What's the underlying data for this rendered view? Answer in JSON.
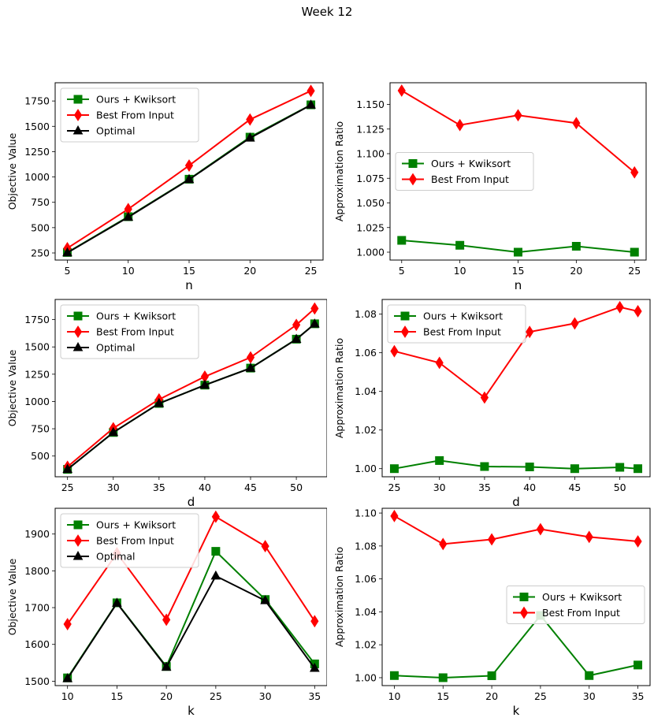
{
  "figure": {
    "title": "Week 12"
  },
  "colors": {
    "ours": "#008000",
    "best": "#ff0000",
    "optimal": "#000000"
  },
  "chart_data": [
    {
      "type": "line",
      "xlabel": "n",
      "ylabel": "Objective Value",
      "x": [
        5,
        10,
        15,
        20,
        25
      ],
      "xticks": [
        5,
        10,
        15,
        20,
        25
      ],
      "xlim": [
        4,
        26
      ],
      "ylim": [
        180,
        1930
      ],
      "yticks": [
        250,
        500,
        750,
        1000,
        1250,
        1500,
        1750
      ],
      "legend": "top-left",
      "series": [
        {
          "name": "Ours + Kwiksort",
          "marker": "square",
          "color": "#008000",
          "values": [
            255,
            608,
            978,
            1393,
            1712
          ]
        },
        {
          "name": "Best From Input",
          "marker": "diamond",
          "color": "#ff0000",
          "values": [
            297,
            683,
            1113,
            1567,
            1850
          ]
        },
        {
          "name": "Optimal",
          "marker": "triangle",
          "color": "#000000",
          "values": [
            252,
            603,
            975,
            1385,
            1710
          ]
        }
      ]
    },
    {
      "type": "line",
      "xlabel": "n",
      "ylabel": "Approximation Ratio",
      "x": [
        5,
        10,
        15,
        20,
        25
      ],
      "xticks": [
        5,
        10,
        15,
        20,
        25
      ],
      "xlim": [
        4,
        26
      ],
      "ylim": [
        0.992,
        1.172
      ],
      "yticks": [
        1.0,
        1.025,
        1.05,
        1.075,
        1.1,
        1.125,
        1.15
      ],
      "ydecimals": 3,
      "legend": "center-left",
      "series": [
        {
          "name": "Ours + Kwiksort",
          "marker": "square",
          "color": "#008000",
          "values": [
            1.012,
            1.007,
            1.0,
            1.006,
            1.0
          ]
        },
        {
          "name": "Best From Input",
          "marker": "diamond",
          "color": "#ff0000",
          "values": [
            1.164,
            1.129,
            1.139,
            1.131,
            1.081
          ]
        }
      ]
    },
    {
      "type": "line",
      "xlabel": "d",
      "ylabel": "Objective Value",
      "x": [
        25,
        30,
        35,
        40,
        45,
        50,
        52
      ],
      "xticks": [
        25,
        30,
        35,
        40,
        45,
        50
      ],
      "xlim": [
        23.65,
        53.35
      ],
      "ylim": [
        310,
        1935
      ],
      "yticks": [
        500,
        750,
        1000,
        1250,
        1500,
        1750
      ],
      "legend": "top-left",
      "series": [
        {
          "name": "Ours + Kwiksort",
          "marker": "square",
          "color": "#008000",
          "values": [
            378,
            716,
            982,
            1150,
            1306,
            1571,
            1712
          ]
        },
        {
          "name": "Best From Input",
          "marker": "diamond",
          "color": "#ff0000",
          "values": [
            402,
            755,
            1019,
            1228,
            1404,
            1702,
            1852
          ]
        },
        {
          "name": "Optimal",
          "marker": "triangle",
          "color": "#000000",
          "values": [
            378,
            716,
            982,
            1150,
            1305,
            1570,
            1710
          ]
        }
      ]
    },
    {
      "type": "line",
      "xlabel": "d",
      "ylabel": "Approximation Ratio",
      "x": [
        25,
        30,
        35,
        40,
        45,
        50,
        52
      ],
      "xticks": [
        25,
        30,
        35,
        40,
        45,
        50
      ],
      "xlim": [
        23.65,
        53.35
      ],
      "ylim": [
        0.9958,
        1.0876
      ],
      "yticks": [
        1.0,
        1.02,
        1.04,
        1.06,
        1.08
      ],
      "ydecimals": 2,
      "legend": "top-left",
      "series": [
        {
          "name": "Ours + Kwiksort",
          "marker": "square",
          "color": "#008000",
          "values": [
            1.0,
            1.0042,
            1.0011,
            1.0009,
            1.0,
            1.0007,
            1.0
          ]
        },
        {
          "name": "Best From Input",
          "marker": "diamond",
          "color": "#ff0000",
          "values": [
            1.0608,
            1.0548,
            1.0368,
            1.0708,
            1.0752,
            1.0836,
            1.0815
          ]
        }
      ]
    },
    {
      "type": "line",
      "xlabel": "k",
      "ylabel": "Objective Value",
      "x": [
        10,
        15,
        20,
        25,
        30,
        35
      ],
      "xticks": [
        10,
        15,
        20,
        25,
        30,
        35
      ],
      "xlim": [
        8.75,
        36.25
      ],
      "ylim": [
        1488,
        1970
      ],
      "yticks": [
        1500,
        1600,
        1700,
        1800,
        1900
      ],
      "legend": "top-left",
      "series": [
        {
          "name": "Ours + Kwiksort",
          "marker": "square",
          "color": "#008000",
          "values": [
            1509,
            1713,
            1540,
            1853,
            1722,
            1547
          ]
        },
        {
          "name": "Best From Input",
          "marker": "diamond",
          "color": "#ff0000",
          "values": [
            1655,
            1848,
            1667,
            1947,
            1867,
            1663
          ]
        },
        {
          "name": "Optimal",
          "marker": "triangle",
          "color": "#000000",
          "values": [
            1507,
            1712,
            1538,
            1786,
            1719,
            1535
          ]
        }
      ]
    },
    {
      "type": "line",
      "xlabel": "k",
      "ylabel": "Approximation Ratio",
      "x": [
        10,
        15,
        20,
        25,
        30,
        35
      ],
      "xticks": [
        10,
        15,
        20,
        25,
        30,
        35
      ],
      "xlim": [
        8.75,
        36.25
      ],
      "ylim": [
        0.9952,
        1.1029
      ],
      "yticks": [
        1.0,
        1.02,
        1.04,
        1.06,
        1.08,
        1.1
      ],
      "ydecimals": 2,
      "legend": "center-right",
      "series": [
        {
          "name": "Ours + Kwiksort",
          "marker": "square",
          "color": "#008000",
          "values": [
            1.0013,
            1.0,
            1.0012,
            1.0378,
            1.0013,
            1.0077
          ]
        },
        {
          "name": "Best From Input",
          "marker": "diamond",
          "color": "#ff0000",
          "values": [
            1.0982,
            1.0812,
            1.084,
            1.0902,
            1.0855,
            1.0828
          ]
        }
      ]
    }
  ]
}
